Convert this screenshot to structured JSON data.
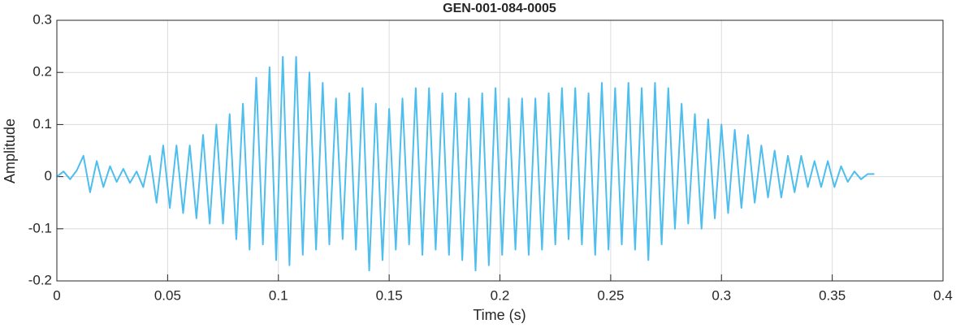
{
  "chart_data": {
    "type": "line",
    "title": "GEN-001-084-0005",
    "xlabel": "Time (s)",
    "ylabel": "Amplitude",
    "color": "#4dbeee",
    "grid": true,
    "xlim": [
      0,
      0.4
    ],
    "ylim": [
      -0.2,
      0.3
    ],
    "xticks": [
      0,
      0.05,
      0.1,
      0.15,
      0.2,
      0.25,
      0.3,
      0.35,
      0.4
    ],
    "yticks": [
      -0.2,
      -0.1,
      0,
      0.1,
      0.2,
      0.3
    ],
    "x": [
      0,
      0.003,
      0.006,
      0.009,
      0.012,
      0.015,
      0.018,
      0.021,
      0.024,
      0.027,
      0.03,
      0.033,
      0.036,
      0.039,
      0.042,
      0.045,
      0.048,
      0.051,
      0.054,
      0.057,
      0.06,
      0.063,
      0.066,
      0.069,
      0.072,
      0.075,
      0.078,
      0.081,
      0.084,
      0.087,
      0.09,
      0.093,
      0.096,
      0.099,
      0.102,
      0.105,
      0.108,
      0.111,
      0.114,
      0.117,
      0.12,
      0.123,
      0.126,
      0.129,
      0.132,
      0.135,
      0.138,
      0.141,
      0.144,
      0.147,
      0.15,
      0.153,
      0.156,
      0.159,
      0.162,
      0.165,
      0.168,
      0.171,
      0.174,
      0.177,
      0.18,
      0.183,
      0.186,
      0.189,
      0.192,
      0.195,
      0.198,
      0.201,
      0.204,
      0.207,
      0.21,
      0.213,
      0.216,
      0.219,
      0.222,
      0.225,
      0.228,
      0.231,
      0.234,
      0.237,
      0.24,
      0.243,
      0.246,
      0.249,
      0.252,
      0.255,
      0.258,
      0.261,
      0.264,
      0.267,
      0.27,
      0.273,
      0.276,
      0.279,
      0.282,
      0.285,
      0.288,
      0.291,
      0.294,
      0.297,
      0.3,
      0.303,
      0.306,
      0.309,
      0.312,
      0.315,
      0.318,
      0.321,
      0.324,
      0.327,
      0.33,
      0.333,
      0.336,
      0.339,
      0.342,
      0.345,
      0.348,
      0.351,
      0.354,
      0.357,
      0.36,
      0.363,
      0.366,
      0.369
    ],
    "values": [
      0,
      0.01,
      -0.005,
      0.012,
      0.04,
      -0.03,
      0.03,
      -0.02,
      0.02,
      -0.01,
      0.015,
      -0.012,
      0.01,
      -0.02,
      0.04,
      -0.05,
      0.06,
      -0.06,
      0.06,
      -0.07,
      0.06,
      -0.08,
      0.08,
      -0.09,
      0.1,
      -0.09,
      0.12,
      -0.12,
      0.14,
      -0.14,
      0.19,
      -0.13,
      0.21,
      -0.16,
      0.23,
      -0.17,
      0.23,
      -0.15,
      0.2,
      -0.14,
      0.18,
      -0.13,
      0.15,
      -0.12,
      0.16,
      -0.14,
      0.17,
      -0.18,
      0.14,
      -0.16,
      0.13,
      -0.14,
      0.15,
      -0.13,
      0.17,
      -0.15,
      0.17,
      -0.14,
      0.16,
      -0.15,
      0.16,
      -0.16,
      0.15,
      -0.18,
      0.16,
      -0.17,
      0.17,
      -0.15,
      0.15,
      -0.14,
      0.15,
      -0.15,
      0.15,
      -0.14,
      0.16,
      -0.13,
      0.17,
      -0.12,
      0.17,
      -0.13,
      0.16,
      -0.15,
      0.18,
      -0.14,
      0.17,
      -0.13,
      0.18,
      -0.14,
      0.17,
      -0.16,
      0.18,
      -0.13,
      0.17,
      -0.1,
      0.14,
      -0.09,
      0.12,
      -0.1,
      0.11,
      -0.08,
      0.1,
      -0.07,
      0.09,
      -0.06,
      0.08,
      -0.05,
      0.06,
      -0.04,
      0.05,
      -0.04,
      0.04,
      -0.03,
      0.04,
      -0.02,
      0.03,
      -0.02,
      0.03,
      -0.02,
      0.02,
      -0.01,
      0.01,
      -0.005,
      0.005,
      0.005
    ]
  }
}
